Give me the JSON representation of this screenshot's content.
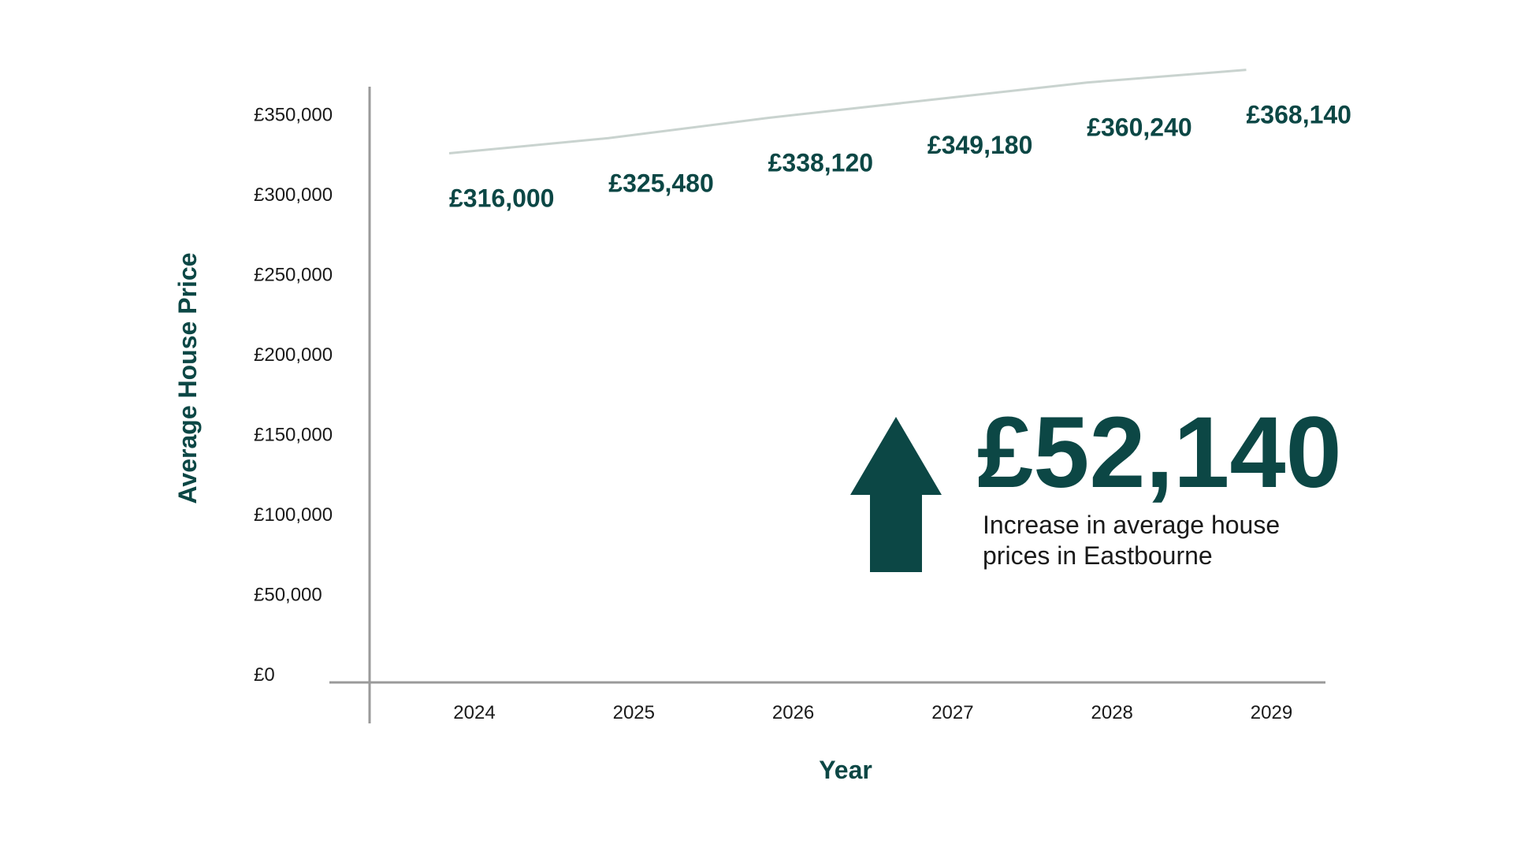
{
  "chart_data": {
    "type": "line",
    "categories": [
      "2024",
      "2025",
      "2026",
      "2027",
      "2028",
      "2029"
    ],
    "values": [
      316000,
      325480,
      338120,
      349180,
      360240,
      368140
    ],
    "data_labels": [
      "£316,000",
      "£325,480",
      "£338,120",
      "£349,180",
      "£360,240",
      "£368,140"
    ],
    "xlabel": "Year",
    "ylabel": "Average House Price",
    "ylim": [
      0,
      350000
    ],
    "y_ticks": [
      0,
      50000,
      100000,
      150000,
      200000,
      250000,
      300000,
      350000
    ],
    "y_tick_labels": [
      "£0",
      "£50,000",
      "£100,000",
      "£150,000",
      "£200,000",
      "£250,000",
      "£300,000",
      "£350,000"
    ],
    "grid": false,
    "legend": "none",
    "annotation": {
      "value": "£52,140",
      "text_lines": [
        "Increase in average house",
        "prices in Eastbourne"
      ],
      "icon": "up-arrow-icon"
    }
  },
  "colors": {
    "accent": "#0c4745",
    "line": "#c9d3cf",
    "axis": "#9a9a9a",
    "text": "#1a1a1a"
  }
}
